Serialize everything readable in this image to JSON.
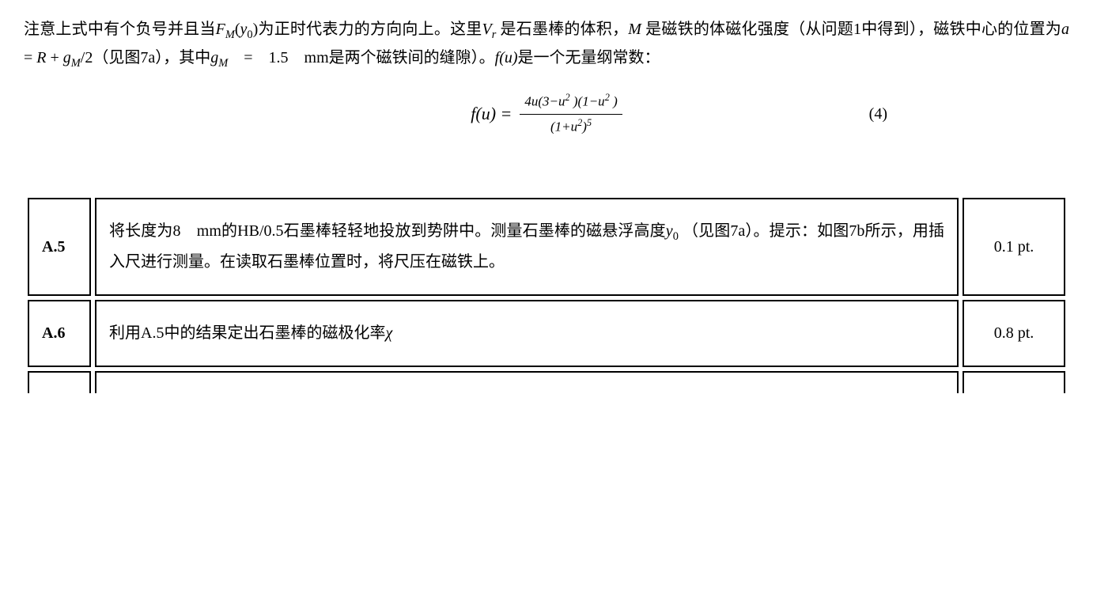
{
  "paragraph": {
    "seg1": "注意上式中有个负号并且当",
    "fm_pre": "F",
    "fm_sub": "M",
    "fm_arg_open": "(",
    "fm_arg_y": "y",
    "fm_arg_sub": "0",
    "fm_arg_close": ")",
    "seg2": "为正时代表力的方向向上。这里",
    "vr_pre": "V",
    "vr_sub": "r",
    "seg3": " 是石墨棒的体积，",
    "m_var": "M",
    "seg4": " 是磁铁的体磁化强度（从问题1中得到），磁铁中心的位置为",
    "a_eq_lhs": "a",
    "a_eq_eq": " = ",
    "a_eq_r": "R",
    "a_eq_plus": " + ",
    "a_eq_g": "g",
    "a_eq_gsub": "M",
    "a_eq_half": "/2",
    "seg5": "（见图7a），其中",
    "gm_pre": "g",
    "gm_sub": "M",
    "seg6": "　=　1.5　mm是两个磁铁间的缝隙）。",
    "fu": "f(u)",
    "seg7": "是一个无量纲常数："
  },
  "equation": {
    "lhs": "f(u) =",
    "numerator_a": "4u(3−u",
    "numerator_b": " )(1−u",
    "numerator_c": " )",
    "denominator_a": "(1+u",
    "denominator_b": ")",
    "sup2": "2",
    "sup5": "5",
    "number": "(4)"
  },
  "tasks": [
    {
      "id": "A.5",
      "desc_a": "将长度为8　mm的HB/0.5石墨棒轻轻地投放到势阱中。测量石墨棒的磁悬浮高度",
      "desc_y": "y",
      "desc_ysub": "0",
      "desc_b": " （见图7a）。提示：如图7b所示，用插入尺进行测量。在读取石墨棒位置时，将尺压在磁铁上。",
      "pts": "0.1 pt."
    },
    {
      "id": "A.6",
      "desc_a": "利用A.5中的结果定出石墨棒的磁极化率",
      "desc_chi": "χ",
      "pts": "0.8 pt."
    }
  ]
}
